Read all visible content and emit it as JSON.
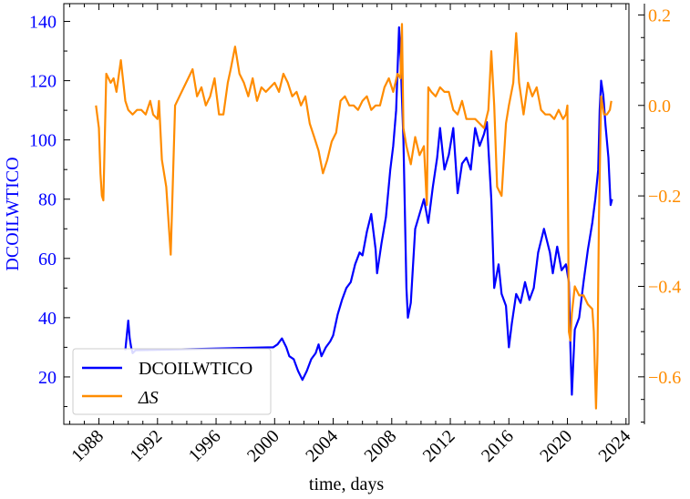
{
  "chart_data": {
    "type": "line",
    "title": "",
    "xlabel": "time, days",
    "ylabel_left": "DCOILWTICO",
    "ylabel_right": "",
    "xlim": [
      1985.6,
      2024.2
    ],
    "ylim_left": [
      4,
      146
    ],
    "ylim_right": [
      -0.705,
      0.225
    ],
    "x_ticks": [
      1988,
      1992,
      1996,
      2000,
      2004,
      2008,
      2012,
      2016,
      2020,
      2024
    ],
    "x_tick_labels": [
      "1988",
      "1992",
      "1996",
      "2000",
      "2004",
      "2008",
      "2012",
      "2016",
      "2020",
      "2024"
    ],
    "y_left_ticks": [
      20,
      40,
      60,
      80,
      100,
      120,
      140
    ],
    "y_left_tick_labels": [
      "20",
      "40",
      "60",
      "80",
      "100",
      "120",
      "140"
    ],
    "y_right_ticks": [
      -0.6,
      -0.4,
      -0.2,
      0.0,
      0.2
    ],
    "y_right_tick_labels": [
      "−0.6",
      "−0.4",
      "−0.2",
      "0.0",
      "0.2"
    ],
    "grid": false,
    "legend_position": "lower-left",
    "colors": {
      "left": "#0000ff",
      "right": "#ff8c00",
      "axis": "#000000"
    },
    "series": [
      {
        "name": "DCOILWTICO",
        "axis": "left",
        "color": "#0000ff",
        "x": [
          1989.8,
          1990.0,
          1990.1,
          1990.2,
          1990.3,
          1990.5,
          1999.9,
          2000.2,
          2000.5,
          2000.8,
          2001.0,
          2001.3,
          2001.6,
          2001.9,
          2002.2,
          2002.5,
          2002.8,
          2003.0,
          2003.2,
          2003.5,
          2003.8,
          2004.0,
          2004.3,
          2004.6,
          2004.9,
          2005.2,
          2005.5,
          2005.8,
          2006.0,
          2006.3,
          2006.6,
          2006.9,
          2007.0,
          2007.3,
          2007.6,
          2007.9,
          2008.1,
          2008.3,
          2008.5,
          2008.6,
          2008.8,
          2009.0,
          2009.1,
          2009.3,
          2009.6,
          2009.9,
          2010.2,
          2010.5,
          2010.8,
          2011.1,
          2011.3,
          2011.6,
          2011.9,
          2012.2,
          2012.5,
          2012.8,
          2013.1,
          2013.4,
          2013.7,
          2014.0,
          2014.3,
          2014.5,
          2014.8,
          2015.0,
          2015.3,
          2015.5,
          2015.8,
          2016.0,
          2016.2,
          2016.5,
          2016.8,
          2017.1,
          2017.4,
          2017.7,
          2018.0,
          2018.4,
          2018.8,
          2019.0,
          2019.3,
          2019.6,
          2019.9,
          2020.1,
          2020.2,
          2020.3,
          2020.5,
          2020.8,
          2021.1,
          2021.4,
          2021.7,
          2021.9,
          2022.1,
          2022.2,
          2022.3,
          2022.45,
          2022.6,
          2022.8,
          2022.95,
          2023.05
        ],
        "values": [
          29,
          39,
          33,
          30,
          28,
          29,
          30,
          31,
          33,
          30,
          27,
          26,
          22,
          19,
          22,
          26,
          28,
          31,
          27,
          30,
          32,
          34,
          41,
          46,
          50,
          52,
          58,
          62,
          61,
          69,
          75,
          63,
          55,
          65,
          74,
          90,
          98,
          110,
          138,
          128,
          100,
          50,
          40,
          45,
          70,
          75,
          80,
          72,
          84,
          94,
          104,
          90,
          95,
          104,
          82,
          92,
          94,
          90,
          104,
          98,
          102,
          106,
          80,
          50,
          58,
          48,
          44,
          30,
          38,
          48,
          45,
          52,
          46,
          50,
          62,
          70,
          62,
          55,
          64,
          56,
          58,
          52,
          30,
          14,
          36,
          40,
          52,
          63,
          72,
          80,
          90,
          110,
          120,
          115,
          105,
          94,
          78,
          80
        ]
      },
      {
        "name": "ΔS",
        "axis": "right",
        "color": "#ff8c00",
        "x": [
          1987.8,
          1988.0,
          1988.1,
          1988.2,
          1988.3,
          1988.5,
          1988.8,
          1989.0,
          1989.2,
          1989.5,
          1989.8,
          1990.0,
          1990.3,
          1990.6,
          1990.9,
          1991.2,
          1991.5,
          1991.7,
          1992.0,
          1992.1,
          1992.3,
          1992.6,
          1992.9,
          1993.2,
          1993.5,
          1993.8,
          1994.1,
          1994.4,
          1994.7,
          1995.0,
          1995.3,
          1995.6,
          1995.9,
          1996.2,
          1996.5,
          1996.8,
          1997.0,
          1997.3,
          1997.6,
          1997.9,
          1998.2,
          1998.5,
          1998.8,
          1999.1,
          1999.4,
          1999.7,
          2000.0,
          2000.3,
          2000.6,
          2000.9,
          2001.2,
          2001.5,
          2001.8,
          2002.1,
          2002.4,
          2002.7,
          2003.0,
          2003.3,
          2003.6,
          2003.9,
          2004.2,
          2004.5,
          2004.8,
          2005.1,
          2005.4,
          2005.7,
          2006.0,
          2006.3,
          2006.6,
          2006.9,
          2007.2,
          2007.5,
          2007.8,
          2008.1,
          2008.4,
          2008.6,
          2008.7,
          2008.8,
          2009.0,
          2009.3,
          2009.6,
          2009.9,
          2010.2,
          2010.4,
          2010.5,
          2010.7,
          2011.0,
          2011.3,
          2011.6,
          2011.9,
          2012.2,
          2012.5,
          2012.8,
          2013.1,
          2013.4,
          2013.7,
          2014.0,
          2014.3,
          2014.6,
          2014.8,
          2015.0,
          2015.2,
          2015.5,
          2015.8,
          2016.0,
          2016.3,
          2016.5,
          2016.7,
          2017.0,
          2017.3,
          2017.6,
          2017.9,
          2018.2,
          2018.5,
          2018.8,
          2019.1,
          2019.4,
          2019.7,
          2019.9,
          2020.0,
          2020.1,
          2020.2,
          2020.3,
          2020.5,
          2020.8,
          2021.1,
          2021.4,
          2021.7,
          2021.8,
          2021.95,
          2022.05,
          2022.15,
          2022.3,
          2022.5,
          2022.7,
          2022.9,
          2023.0
        ],
        "values": [
          0.0,
          -0.05,
          -0.15,
          -0.2,
          -0.21,
          0.07,
          0.05,
          0.06,
          0.03,
          0.1,
          0.01,
          -0.01,
          -0.02,
          -0.01,
          -0.01,
          -0.02,
          0.01,
          -0.02,
          -0.03,
          0.01,
          -0.12,
          -0.18,
          -0.33,
          0.0,
          0.02,
          0.04,
          0.06,
          0.08,
          0.02,
          0.04,
          0.0,
          0.02,
          0.06,
          -0.02,
          -0.02,
          0.05,
          0.08,
          0.13,
          0.07,
          0.05,
          0.02,
          0.06,
          0.01,
          0.04,
          0.03,
          0.04,
          0.05,
          0.03,
          0.07,
          0.05,
          0.02,
          0.03,
          0.0,
          0.02,
          -0.04,
          -0.07,
          -0.1,
          -0.15,
          -0.12,
          -0.08,
          -0.06,
          0.01,
          0.02,
          0.0,
          0.0,
          -0.01,
          0.01,
          0.02,
          -0.01,
          0.0,
          0.0,
          0.04,
          0.06,
          0.03,
          0.07,
          0.06,
          0.18,
          -0.05,
          -0.09,
          -0.13,
          -0.07,
          -0.11,
          -0.09,
          -0.22,
          0.04,
          0.03,
          0.02,
          0.04,
          0.03,
          0.03,
          -0.01,
          -0.02,
          0.01,
          -0.03,
          -0.03,
          -0.03,
          -0.04,
          -0.05,
          -0.01,
          0.12,
          0.0,
          -0.18,
          -0.2,
          -0.04,
          0.0,
          0.05,
          0.16,
          0.05,
          -0.02,
          0.05,
          0.02,
          0.04,
          -0.01,
          -0.02,
          -0.02,
          -0.03,
          -0.01,
          -0.03,
          -0.02,
          0.0,
          -0.5,
          -0.52,
          -0.46,
          -0.4,
          -0.42,
          -0.42,
          -0.44,
          -0.45,
          -0.5,
          -0.67,
          -0.55,
          -0.25,
          0.02,
          -0.02,
          -0.02,
          -0.01,
          0.01
        ]
      }
    ]
  }
}
